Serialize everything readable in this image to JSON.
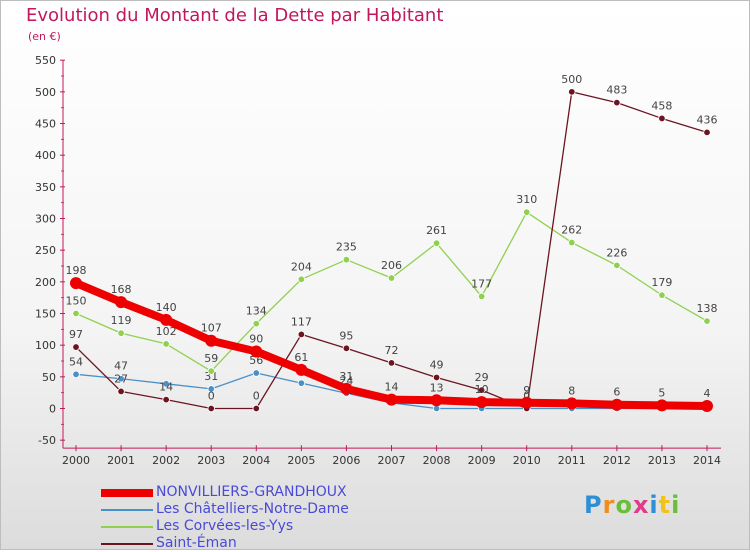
{
  "title": "Evolution du Montant de la Dette par Habitant",
  "subtitle": "(en €)",
  "logo": "Proxiti",
  "chart_data": {
    "type": "line",
    "x": [
      2000,
      2001,
      2002,
      2003,
      2004,
      2005,
      2006,
      2007,
      2008,
      2009,
      2010,
      2011,
      2012,
      2013,
      2014
    ],
    "ylim": [
      -50,
      550
    ],
    "yticks": [
      -50,
      0,
      50,
      100,
      150,
      200,
      250,
      300,
      350,
      400,
      450,
      500,
      550
    ],
    "grid": false,
    "legend_position": "bottom",
    "series": [
      {
        "name": "Les Châtelliers-Notre-Dame",
        "color": "#4a90c8",
        "values": [
          54,
          47,
          39,
          31,
          56,
          40,
          24,
          9,
          0,
          0,
          0,
          0,
          0,
          0,
          0
        ],
        "labels": [
          "54",
          "47",
          "",
          "31",
          "56",
          "",
          "24",
          "",
          "",
          "",
          "",
          "",
          "",
          "",
          ""
        ]
      },
      {
        "name": "Les Corvées-les-Yys",
        "color": "#8fd14f",
        "values": [
          150,
          119,
          102,
          59,
          134,
          204,
          235,
          206,
          261,
          177,
          310,
          262,
          226,
          179,
          138
        ],
        "labels": [
          "150",
          "119",
          "102",
          "59",
          "134",
          "204",
          "235",
          "206",
          "261",
          "177",
          "310",
          "262",
          "226",
          "179",
          "138"
        ]
      },
      {
        "name": "Saint-Éman",
        "color": "#6b1520",
        "values": [
          97,
          27,
          14,
          0,
          0,
          117,
          95,
          72,
          49,
          29,
          0,
          500,
          483,
          458,
          436
        ],
        "labels": [
          "97",
          "27",
          "14",
          "0",
          "0",
          "117",
          "95",
          "72",
          "49",
          "29",
          "0",
          "500",
          "483",
          "458",
          "436"
        ]
      },
      {
        "name": "NONVILLIERS-GRANDHOUX",
        "color": "#ee0000",
        "values": [
          198,
          168,
          140,
          107,
          90,
          61,
          31,
          14,
          13,
          10,
          9,
          8,
          6,
          5,
          4
        ],
        "labels": [
          "198",
          "168",
          "140",
          "107",
          "90",
          "61",
          "31",
          "14",
          "13",
          "10",
          "9",
          "8",
          "6",
          "5",
          "4"
        ]
      }
    ],
    "legend": [
      "NONVILLIERS-GRANDHOUX",
      "Les Châtelliers-Notre-Dame",
      "Les Corvées-les-Yys",
      "Saint-Éman"
    ]
  }
}
